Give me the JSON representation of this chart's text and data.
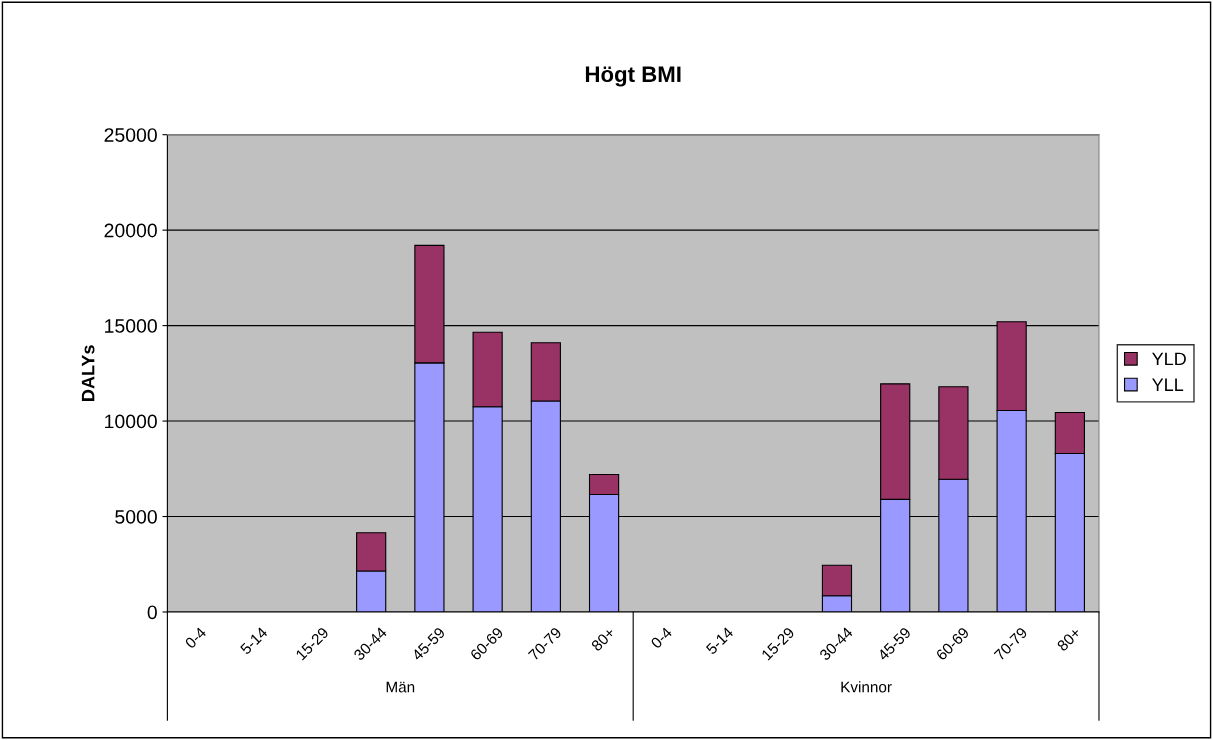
{
  "chart_data": {
    "type": "bar",
    "title": "Högt BMI",
    "ylabel": "DALYs",
    "stacked": true,
    "categories": [
      "0-4",
      "5-14",
      "15-29",
      "30-44",
      "45-59",
      "60-69",
      "70-79",
      "80+",
      "0-4",
      "5-14",
      "15-29",
      "30-44",
      "45-59",
      "60-69",
      "70-79",
      "80+"
    ],
    "series": [
      {
        "name": "YLL",
        "color": "#9999ff",
        "values": [
          null,
          null,
          null,
          2150,
          13050,
          10750,
          11050,
          6150,
          null,
          null,
          null,
          850,
          5900,
          6950,
          10550,
          8300
        ]
      },
      {
        "name": "YLD",
        "color": "#993366",
        "values": [
          null,
          null,
          null,
          2000,
          6150,
          3900,
          3050,
          1050,
          null,
          null,
          null,
          1600,
          6050,
          4850,
          4650,
          2150
        ]
      }
    ],
    "ylim": [
      0,
      25000
    ],
    "yticks": [
      0,
      5000,
      10000,
      15000,
      20000,
      25000
    ],
    "grid": "y",
    "legend": "right",
    "annotations": [
      "Män",
      "Kvinnor"
    ]
  }
}
